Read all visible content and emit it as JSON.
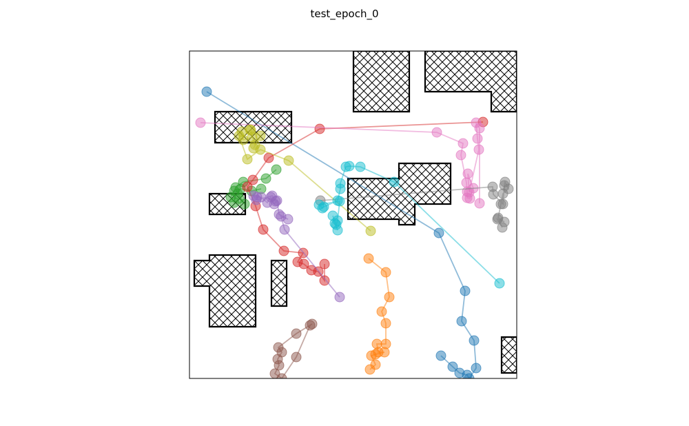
{
  "figure": {
    "title": "test_epoch_0"
  },
  "chart_data": {
    "type": "scatter",
    "title": "test_epoch_0",
    "xlabel": "",
    "ylabel": "",
    "xlim": [
      0,
      475
    ],
    "ylim": [
      0,
      475
    ],
    "y_axis_inverted": true,
    "axes_visible": false,
    "grid": false,
    "legend": "none",
    "marker": "circle",
    "marker_alpha": 0.5,
    "line_alpha": 0.5,
    "obstacles": [
      {
        "fill": "hatched-cross",
        "points": [
          [
            238,
            0
          ],
          [
            319,
            0
          ],
          [
            319,
            88
          ],
          [
            238,
            88
          ]
        ]
      },
      {
        "fill": "hatched-cross",
        "points": [
          [
            342,
            0
          ],
          [
            475,
            0
          ],
          [
            475,
            88
          ],
          [
            438,
            88
          ],
          [
            438,
            59
          ],
          [
            342,
            59
          ]
        ]
      },
      {
        "fill": "hatched-cross",
        "points": [
          [
            37,
            88
          ],
          [
            148,
            88
          ],
          [
            148,
            133
          ],
          [
            37,
            133
          ]
        ]
      },
      {
        "fill": "hatched-cross",
        "points": [
          [
            29,
            207
          ],
          [
            81,
            207
          ],
          [
            81,
            237
          ],
          [
            29,
            237
          ]
        ]
      },
      {
        "fill": "hatched-cross",
        "points": [
          [
            230,
            185
          ],
          [
            304,
            185
          ],
          [
            304,
            163
          ],
          [
            379,
            163
          ],
          [
            379,
            222
          ],
          [
            327,
            222
          ],
          [
            327,
            252
          ],
          [
            304,
            252
          ],
          [
            304,
            244
          ],
          [
            230,
            244
          ]
        ]
      },
      {
        "fill": "hatched-cross",
        "points": [
          [
            29,
            296
          ],
          [
            96,
            296
          ],
          [
            96,
            400
          ],
          [
            29,
            400
          ],
          [
            29,
            341
          ],
          [
            7,
            341
          ],
          [
            7,
            304
          ],
          [
            29,
            304
          ]
        ]
      },
      {
        "fill": "hatched-cross",
        "points": [
          [
            119,
            304
          ],
          [
            141,
            304
          ],
          [
            141,
            370
          ],
          [
            119,
            370
          ]
        ]
      },
      {
        "fill": "hatched-cross",
        "points": [
          [
            453,
            415
          ],
          [
            475,
            415
          ],
          [
            475,
            467
          ],
          [
            453,
            467
          ]
        ]
      }
    ],
    "series": [
      {
        "color": "#1f77b4",
        "points": [
          [
            25,
            59
          ],
          [
            362,
            264
          ],
          [
            400,
            348
          ],
          [
            395,
            392
          ],
          [
            413,
            420
          ],
          [
            416,
            460
          ],
          [
            406,
            475
          ],
          [
            403,
            470
          ],
          [
            392,
            467
          ],
          [
            382,
            458
          ],
          [
            365,
            442
          ]
        ]
      },
      {
        "color": "#ff7f0e",
        "points": [
          [
            260,
            301
          ],
          [
            285,
            321
          ],
          [
            290,
            357
          ],
          [
            279,
            378
          ],
          [
            285,
            395
          ],
          [
            285,
            425
          ],
          [
            272,
            425
          ],
          [
            274,
            437
          ],
          [
            283,
            437
          ],
          [
            270,
            440
          ],
          [
            264,
            442
          ],
          [
            270,
            455
          ],
          [
            262,
            462
          ]
        ]
      },
      {
        "color": "#2ca02c",
        "points": [
          [
            126,
            172
          ],
          [
            111,
            185
          ],
          [
            78,
            190
          ],
          [
            67,
            198
          ],
          [
            65,
            203
          ],
          [
            60,
            212
          ],
          [
            65,
            220
          ],
          [
            72,
            214
          ],
          [
            80,
            222
          ],
          [
            70,
            207
          ],
          [
            74,
            200
          ],
          [
            90,
            203
          ],
          [
            104,
            200
          ]
        ]
      },
      {
        "color": "#d62728",
        "points": [
          [
            426,
            103
          ],
          [
            189,
            113
          ],
          [
            115,
            155
          ],
          [
            92,
            187
          ],
          [
            84,
            197
          ],
          [
            96,
            225
          ],
          [
            107,
            259
          ],
          [
            137,
            290
          ],
          [
            165,
            293
          ],
          [
            157,
            306
          ],
          [
            166,
            309
          ],
          [
            177,
            318
          ],
          [
            187,
            320
          ],
          [
            196,
            333
          ],
          [
            196,
            309
          ]
        ]
      },
      {
        "color": "#9467bd",
        "points": [
          [
            218,
            357
          ],
          [
            138,
            259
          ],
          [
            133,
            240
          ],
          [
            143,
            244
          ],
          [
            130,
            237
          ],
          [
            127,
            217
          ],
          [
            123,
            222
          ],
          [
            118,
            212
          ],
          [
            113,
            220
          ],
          [
            104,
            212
          ],
          [
            98,
            212
          ],
          [
            93,
            210
          ],
          [
            97,
            216
          ],
          [
            120,
            210
          ],
          [
            125,
            218
          ]
        ]
      },
      {
        "color": "#8c564b",
        "points": [
          [
            178,
            396
          ],
          [
            155,
            410
          ],
          [
            129,
            430
          ],
          [
            134,
            437
          ],
          [
            128,
            447
          ],
          [
            130,
            456
          ],
          [
            124,
            468
          ],
          [
            134,
            475
          ],
          [
            155,
            444
          ],
          [
            175,
            398
          ]
        ]
      },
      {
        "color": "#e377c2",
        "points": [
          [
            16,
            104
          ],
          [
            359,
            118
          ],
          [
            397,
            134
          ],
          [
            394,
            151
          ],
          [
            402,
            191
          ],
          [
            403,
            204
          ],
          [
            403,
            213
          ],
          [
            407,
            214
          ],
          [
            412,
            199
          ],
          [
            404,
            178
          ],
          [
            406,
            205
          ],
          [
            420,
            143
          ],
          [
            418,
            127
          ],
          [
            416,
            104
          ],
          [
            421,
            112
          ],
          [
            421,
            221
          ]
        ]
      },
      {
        "color": "#7f7f7f",
        "points": [
          [
            190,
            217
          ],
          [
            440,
            197
          ],
          [
            441,
            208
          ],
          [
            455,
            222
          ],
          [
            457,
            195
          ],
          [
            458,
            190
          ],
          [
            463,
            200
          ],
          [
            455,
            207
          ],
          [
            452,
            222
          ],
          [
            448,
            242
          ],
          [
            457,
            248
          ],
          [
            447,
            244
          ],
          [
            454,
            256
          ]
        ]
      },
      {
        "color": "#bcbd22",
        "points": [
          [
            263,
            261
          ],
          [
            144,
            159
          ],
          [
            103,
            143
          ],
          [
            84,
            157
          ],
          [
            72,
            123
          ],
          [
            76,
            117
          ],
          [
            78,
            129
          ],
          [
            91,
            125
          ],
          [
            88,
            114
          ],
          [
            95,
            136
          ],
          [
            89,
            115
          ],
          [
            103,
            123
          ],
          [
            93,
            141
          ]
        ]
      },
      {
        "color": "#17becf",
        "points": [
          [
            450,
            337
          ],
          [
            297,
            190
          ],
          [
            248,
            168
          ],
          [
            232,
            167
          ],
          [
            227,
            168
          ],
          [
            219,
            192
          ],
          [
            219,
            200
          ],
          [
            215,
            217
          ],
          [
            195,
            226
          ],
          [
            193,
            228
          ],
          [
            188,
            223
          ],
          [
            218,
            218
          ],
          [
            215,
            246
          ],
          [
            213,
            252
          ],
          [
            208,
            239
          ],
          [
            215,
            260
          ],
          [
            211,
            250
          ]
        ]
      }
    ]
  }
}
